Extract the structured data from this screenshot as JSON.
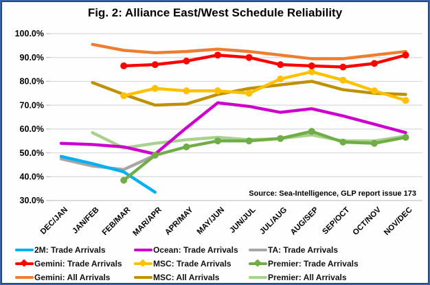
{
  "title": "Fig. 2: Alliance East/West Schedule Reliability",
  "source": "Source: Sea-Intelligence, GLP report issue 173",
  "chart_data": {
    "type": "line",
    "title": "Fig. 2: Alliance East/West Schedule Reliability",
    "xlabel": "",
    "ylabel": "",
    "ylim": [
      30,
      100
    ],
    "grid": true,
    "legend_position": "bottom",
    "y_ticks": [
      "100.0%",
      "90.0%",
      "80.0%",
      "70.0%",
      "60.0%",
      "50.0%",
      "40.0%",
      "30.0%"
    ],
    "categories": [
      "DEC/JAN",
      "JAN/FEB",
      "FEB/MAR",
      "MAR/APR",
      "APR/MAY",
      "MAY/JUN",
      "JUN/JUL",
      "JUL/AUG",
      "AUG/SEP",
      "SEP/OCT",
      "OCT/NOV",
      "NOV/DEC"
    ],
    "series": [
      {
        "name": "2M: Trade Arrivals",
        "color": "#00B0F0",
        "markers": false,
        "values": [
          48.5,
          45.5,
          42,
          33.5,
          null,
          null,
          null,
          null,
          null,
          null,
          null,
          null
        ]
      },
      {
        "name": "Ocean: Trade Arrivals",
        "color": "#CC00CC",
        "markers": false,
        "values": [
          54,
          53.5,
          52.5,
          49.5,
          60.5,
          71,
          69.5,
          67,
          68.5,
          65.5,
          62,
          58.5
        ]
      },
      {
        "name": "TA: Trade Arrivals",
        "color": "#A6A6A6",
        "markers": false,
        "values": [
          47.5,
          44.5,
          43,
          49,
          null,
          null,
          null,
          null,
          null,
          null,
          null,
          null
        ]
      },
      {
        "name": "Gemini: Trade Arrivals",
        "color": "#FF0000",
        "markers": true,
        "values": [
          null,
          null,
          86.5,
          87,
          88.5,
          91,
          90,
          87,
          86.5,
          86,
          87.5,
          91
        ]
      },
      {
        "name": "MSC: Trade Arrivals",
        "color": "#FFC000",
        "markers": true,
        "values": [
          null,
          null,
          74,
          77,
          76,
          76,
          75,
          81,
          84,
          80.5,
          76,
          72
        ]
      },
      {
        "name": "Premier: Trade Arrivals",
        "color": "#70AD47",
        "markers": true,
        "values": [
          null,
          null,
          38.5,
          49,
          52.5,
          55,
          55,
          56,
          59,
          54.5,
          54,
          56.5
        ]
      },
      {
        "name": "Gemini: All Arrivals",
        "color": "#ED7D31",
        "markers": false,
        "values": [
          null,
          95.5,
          93,
          92,
          92.5,
          93.5,
          92.5,
          91,
          89.5,
          89.5,
          91,
          92.5
        ]
      },
      {
        "name": "MSC: All Arrivals",
        "color": "#BF9000",
        "markers": false,
        "values": [
          null,
          79.5,
          74.5,
          70,
          70.5,
          74.5,
          77,
          78.5,
          80,
          76.5,
          75,
          74.5
        ]
      },
      {
        "name": "Premier: All Arrivals",
        "color": "#A9D18E",
        "markers": false,
        "values": [
          null,
          58.5,
          52,
          54,
          55.5,
          56.5,
          55.5,
          56,
          57.5,
          55,
          55,
          57
        ]
      }
    ]
  },
  "legend": {
    "items": [
      {
        "label": "2M: Trade Arrivals",
        "color": "#00B0F0",
        "marker": false
      },
      {
        "label": "Ocean: Trade Arrivals",
        "color": "#CC00CC",
        "marker": false
      },
      {
        "label": "TA: Trade Arrivals",
        "color": "#A6A6A6",
        "marker": false
      },
      {
        "label": "Gemini: Trade Arrivals",
        "color": "#FF0000",
        "marker": true
      },
      {
        "label": "MSC: Trade Arrivals",
        "color": "#FFC000",
        "marker": true
      },
      {
        "label": "Premier: Trade Arrivals",
        "color": "#70AD47",
        "marker": true
      },
      {
        "label": "Gemini: All Arrivals",
        "color": "#ED7D31",
        "marker": false
      },
      {
        "label": "MSC: All Arrivals",
        "color": "#BF9000",
        "marker": false
      },
      {
        "label": "Premier: All Arrivals",
        "color": "#A9D18E",
        "marker": false
      }
    ]
  },
  "style_colors": {
    "gridline": "#D9D9D9",
    "axis_bottom": "#C6C6C6",
    "tick": "#BFBFBF",
    "border": "#3A62A8",
    "text": "#000000"
  }
}
